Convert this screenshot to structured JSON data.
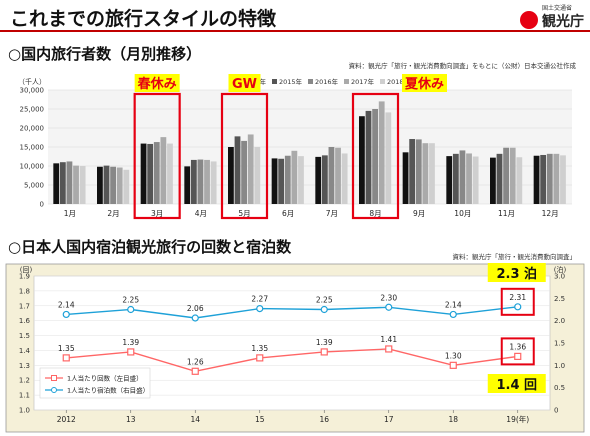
{
  "header": {
    "title": "これまでの旅行スタイルの特徴",
    "logo_sub": "国土交通省",
    "logo_name": "観光庁"
  },
  "section1": {
    "title": "○国内旅行者数（月別推移）",
    "source": "資料：観光庁「旅行・観光消費動向調査」をもとに（公財）日本交通公社作成"
  },
  "section2": {
    "title": "○日本人国内宿泊観光旅行の回数と宿泊数",
    "source": "資料：観光庁「旅行・観光消費動向調査」"
  },
  "colors": {
    "highlight": "#e60012",
    "callout": "#ffff00",
    "line_trips": "#ff6666",
    "line_nights": "#1ea1d8",
    "panel_bg": "#f5f0d8"
  },
  "chart_data": [
    {
      "type": "bar",
      "unit": "（千人）",
      "ylim": [
        0,
        30000
      ],
      "yticks": [
        "0",
        "5,000",
        "10,000",
        "15,000",
        "20,000",
        "25,000",
        "30,000"
      ],
      "categories": [
        "1月",
        "2月",
        "3月",
        "4月",
        "5月",
        "6月",
        "7月",
        "8月",
        "9月",
        "10月",
        "11月",
        "12月"
      ],
      "series": [
        {
          "name": "2014年",
          "color": "#111111",
          "values": [
            10700,
            9800,
            15900,
            9900,
            15000,
            12000,
            12400,
            23100,
            13600,
            12600,
            12200,
            12700
          ]
        },
        {
          "name": "2015年",
          "color": "#555555",
          "values": [
            11000,
            10100,
            15800,
            11600,
            17800,
            11900,
            12800,
            24500,
            17100,
            13200,
            13200,
            12900
          ]
        },
        {
          "name": "2016年",
          "color": "#888888",
          "values": [
            11200,
            9800,
            16300,
            11700,
            16600,
            12700,
            15000,
            25000,
            17000,
            14100,
            14800,
            13200
          ]
        },
        {
          "name": "2017年",
          "color": "#aaaaaa",
          "values": [
            10100,
            9600,
            17600,
            11600,
            18300,
            14000,
            14800,
            27000,
            16000,
            13300,
            14800,
            13200
          ]
        },
        {
          "name": "2018年",
          "color": "#cfcfcf",
          "values": [
            10000,
            9000,
            15900,
            11200,
            15000,
            12600,
            13300,
            24100,
            16000,
            12500,
            12300,
            12800
          ]
        }
      ],
      "annotations": [
        {
          "label": "春休み",
          "category": "3月"
        },
        {
          "label": "GW",
          "category": "5月"
        },
        {
          "label": "夏休み",
          "category": "8月"
        }
      ]
    },
    {
      "type": "line",
      "x": [
        "2012",
        "13",
        "14",
        "15",
        "16",
        "17",
        "18",
        "19"
      ],
      "x_last_suffix": "(年)",
      "left_unit": "(回)",
      "right_unit": "(泊)",
      "ylim_left": [
        1.0,
        1.9
      ],
      "ylim_right": [
        0,
        3.0
      ],
      "yticks_left": [
        "1.0",
        "1.1",
        "1.2",
        "1.3",
        "1.4",
        "1.5",
        "1.6",
        "1.7",
        "1.8",
        "1.9"
      ],
      "yticks_right": [
        "0",
        "0.5",
        "1.0",
        "1.5",
        "2.0",
        "2.5",
        "3.0"
      ],
      "series": [
        {
          "name": "1人当たり回数（左目盛）",
          "axis": "left",
          "values": [
            1.35,
            1.39,
            1.26,
            1.35,
            1.39,
            1.41,
            1.3,
            1.36
          ],
          "labels": [
            "1.35",
            "1.39",
            "1.26",
            "1.35",
            "1.39",
            "1.41",
            "1.30",
            "1.36"
          ]
        },
        {
          "name": "1人当たり宿泊数（右目盛）",
          "axis": "right",
          "values": [
            2.14,
            2.25,
            2.06,
            2.27,
            2.25,
            2.3,
            2.14,
            2.31
          ],
          "labels": [
            "2.14",
            "2.25",
            "2.06",
            "2.27",
            "2.25",
            "2.30",
            "2.14",
            "2.31"
          ]
        }
      ],
      "callouts": [
        {
          "label": "2.3 泊"
        },
        {
          "label": "1.4 回"
        }
      ]
    }
  ]
}
